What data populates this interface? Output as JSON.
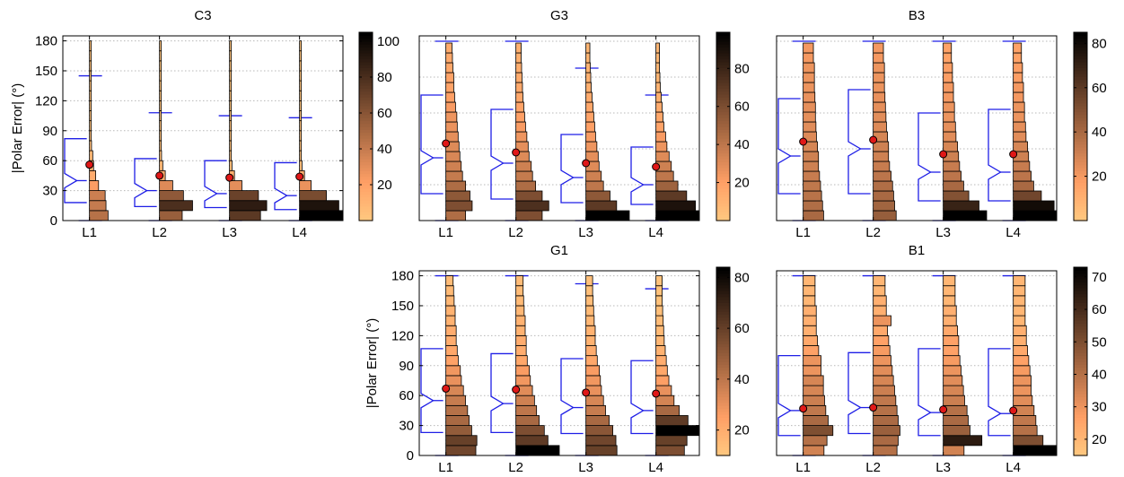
{
  "figure": {
    "ylabel": "|Polar Error| (°)"
  },
  "chart_data": [
    {
      "type": "histogram-boxplot",
      "title": "C3",
      "categories": [
        "L1",
        "L2",
        "L3",
        "L4"
      ],
      "ylabel": "|Polar Error| (°)",
      "ylim": [
        0,
        185
      ],
      "yticks": [
        0,
        30,
        60,
        90,
        120,
        150,
        180
      ],
      "bin_width_deg": 10,
      "colorbar": {
        "min": 0,
        "max": 105,
        "ticks": [
          20,
          40,
          60,
          80,
          100
        ],
        "colormap": "copper-reversed"
      },
      "series": [
        {
          "name": "L1",
          "counts": [
            45,
            40,
            38,
            22,
            15,
            10,
            8,
            5,
            4,
            3,
            3,
            2,
            2,
            2,
            2,
            2,
            2,
            2
          ],
          "mean": 56,
          "box": {
            "whisker_low": 0,
            "q1": 18,
            "median": 40,
            "q3": 82,
            "whisker_high": 145
          }
        },
        {
          "name": "L2",
          "counts": [
            55,
            80,
            58,
            32,
            14,
            8,
            5,
            4,
            3,
            2,
            2,
            2,
            1,
            1,
            1,
            1,
            1,
            1
          ],
          "mean": 45,
          "box": {
            "whisker_low": 0,
            "q1": 14,
            "median": 30,
            "q3": 62,
            "whisker_high": 108
          }
        },
        {
          "name": "L3",
          "counts": [
            75,
            90,
            70,
            30,
            12,
            6,
            4,
            3,
            2,
            2,
            2,
            1,
            1,
            1,
            1,
            1,
            1,
            1
          ],
          "mean": 43,
          "box": {
            "whisker_low": 0,
            "q1": 13,
            "median": 27,
            "q3": 60,
            "whisker_high": 105
          }
        },
        {
          "name": "L4",
          "counts": [
            105,
            95,
            65,
            28,
            12,
            6,
            4,
            3,
            2,
            2,
            1,
            1,
            1,
            1,
            1,
            1,
            1,
            1
          ],
          "mean": 44,
          "box": {
            "whisker_low": 0,
            "q1": 11,
            "median": 25,
            "q3": 58,
            "whisker_high": 103
          }
        }
      ]
    },
    {
      "type": "histogram-boxplot",
      "title": "G3",
      "categories": [
        "L1",
        "L2",
        "L3",
        "L4"
      ],
      "ylim": [
        0,
        103
      ],
      "yticks": [],
      "bin_width_deg": 5.5,
      "colorbar": {
        "min": 0,
        "max": 99,
        "ticks": [
          20,
          40,
          60,
          80
        ],
        "colormap": "copper-reversed"
      },
      "series": [
        {
          "name": "L1",
          "counts": [
            45,
            60,
            55,
            45,
            38,
            35,
            32,
            30,
            28,
            26,
            25,
            22,
            20,
            18,
            18,
            16,
            15,
            14
          ],
          "mean": 43,
          "box": {
            "whisker_low": 0,
            "q1": 15,
            "median": 35,
            "q3": 70,
            "whisker_high": 100
          }
        },
        {
          "name": "L2",
          "counts": [
            60,
            75,
            60,
            45,
            38,
            35,
            30,
            28,
            25,
            22,
            20,
            18,
            16,
            15,
            14,
            13,
            12,
            12
          ],
          "mean": 38,
          "box": {
            "whisker_low": 0,
            "q1": 12,
            "median": 32,
            "q3": 62,
            "whisker_high": 100
          }
        },
        {
          "name": "L3",
          "counts": [
            99,
            70,
            55,
            40,
            35,
            30,
            28,
            25,
            22,
            20,
            18,
            16,
            14,
            12,
            11,
            10,
            9,
            9
          ],
          "mean": 32,
          "box": {
            "whisker_low": 0,
            "q1": 10,
            "median": 24,
            "q3": 48,
            "whisker_high": 85
          }
        },
        {
          "name": "L4",
          "counts": [
            99,
            90,
            70,
            50,
            40,
            35,
            30,
            25,
            22,
            18,
            16,
            14,
            12,
            10,
            9,
            8,
            8,
            8
          ],
          "mean": 30,
          "box": {
            "whisker_low": 0,
            "q1": 9,
            "median": 20,
            "q3": 41,
            "whisker_high": 70
          }
        }
      ]
    },
    {
      "type": "histogram-boxplot",
      "title": "B3",
      "categories": [
        "L1",
        "L2",
        "L3",
        "L4"
      ],
      "ylim": [
        0,
        103
      ],
      "yticks": [],
      "bin_width_deg": 5.5,
      "colorbar": {
        "min": 0,
        "max": 85,
        "ticks": [
          20,
          40,
          60,
          80
        ],
        "colormap": "copper-reversed"
      },
      "series": [
        {
          "name": "L1",
          "counts": [
            40,
            38,
            36,
            34,
            32,
            30,
            30,
            28,
            26,
            25,
            24,
            24,
            23,
            22,
            22,
            22,
            20,
            20
          ],
          "mean": 44,
          "box": {
            "whisker_low": 0,
            "q1": 15,
            "median": 36,
            "q3": 68,
            "whisker_high": 100
          }
        },
        {
          "name": "L2",
          "counts": [
            45,
            42,
            40,
            38,
            35,
            32,
            30,
            30,
            28,
            26,
            25,
            24,
            23,
            22,
            22,
            22,
            20,
            20
          ],
          "mean": 45,
          "box": {
            "whisker_low": 0,
            "q1": 15,
            "median": 40,
            "q3": 73,
            "whisker_high": 100
          }
        },
        {
          "name": "L3",
          "counts": [
            85,
            70,
            50,
            40,
            35,
            32,
            30,
            28,
            25,
            24,
            22,
            22,
            20,
            20,
            18,
            18,
            16,
            16
          ],
          "mean": 37,
          "box": {
            "whisker_low": 0,
            "q1": 11,
            "median": 27,
            "q3": 60,
            "whisker_high": 100
          }
        },
        {
          "name": "L4",
          "counts": [
            85,
            80,
            55,
            40,
            35,
            32,
            30,
            28,
            25,
            24,
            22,
            22,
            20,
            20,
            18,
            18,
            16,
            16
          ],
          "mean": 37,
          "box": {
            "whisker_low": 0,
            "q1": 11,
            "median": 27,
            "q3": 62,
            "whisker_high": 100
          }
        }
      ]
    },
    {
      "type": "histogram-boxplot",
      "title": "G1",
      "categories": [
        "L1",
        "L2",
        "L3",
        "L4"
      ],
      "ylabel": "|Polar Error| (°)",
      "ylim": [
        0,
        185
      ],
      "yticks": [
        0,
        30,
        60,
        90,
        120,
        150,
        180
      ],
      "bin_width_deg": 10,
      "colorbar": {
        "min": 10,
        "max": 84,
        "ticks": [
          20,
          40,
          60,
          80
        ],
        "colormap": "copper-reversed"
      },
      "series": [
        {
          "name": "L1",
          "counts": [
            58,
            60,
            50,
            45,
            42,
            38,
            34,
            30,
            28,
            24,
            22,
            20,
            20,
            18,
            18,
            16,
            15,
            14
          ],
          "mean": 67,
          "box": {
            "whisker_low": 0,
            "q1": 23,
            "median": 55,
            "q3": 107,
            "whisker_high": 180
          }
        },
        {
          "name": "L2",
          "counts": [
            84,
            62,
            55,
            45,
            40,
            36,
            32,
            28,
            26,
            22,
            20,
            20,
            18,
            18,
            16,
            15,
            14,
            14
          ],
          "mean": 66,
          "box": {
            "whisker_low": 0,
            "q1": 23,
            "median": 52,
            "q3": 102,
            "whisker_high": 180
          }
        },
        {
          "name": "L3",
          "counts": [
            60,
            58,
            52,
            45,
            38,
            34,
            30,
            28,
            26,
            22,
            20,
            18,
            18,
            16,
            15,
            14,
            13,
            13
          ],
          "mean": 63,
          "box": {
            "whisker_low": 0,
            "q1": 22,
            "median": 48,
            "q3": 97,
            "whisker_high": 172
          }
        },
        {
          "name": "L4",
          "counts": [
            55,
            60,
            84,
            62,
            45,
            35,
            30,
            25,
            22,
            20,
            18,
            16,
            15,
            14,
            13,
            12,
            12,
            12
          ],
          "mean": 62,
          "box": {
            "whisker_low": 0,
            "q1": 22,
            "median": 45,
            "q3": 95,
            "whisker_high": 167
          }
        }
      ]
    },
    {
      "type": "histogram-boxplot",
      "title": "B1",
      "categories": [
        "L1",
        "L2",
        "L3",
        "L4"
      ],
      "ylim": [
        0,
        185
      ],
      "yticks": [],
      "bin_width_deg": 10,
      "colorbar": {
        "min": 15,
        "max": 73,
        "ticks": [
          20,
          30,
          40,
          50,
          60,
          70
        ],
        "colormap": "copper-reversed"
      },
      "series": [
        {
          "name": "L1",
          "counts": [
            35,
            40,
            50,
            42,
            38,
            36,
            34,
            34,
            30,
            30,
            26,
            24,
            22,
            22,
            22,
            20,
            20,
            20
          ],
          "mean": 47,
          "box": {
            "whisker_low": 0,
            "q1": 20,
            "median": 45,
            "q3": 100,
            "whisker_high": 180
          }
        },
        {
          "name": "L2",
          "counts": [
            40,
            42,
            45,
            42,
            40,
            38,
            36,
            34,
            32,
            30,
            28,
            26,
            24,
            30,
            22,
            22,
            20,
            20
          ],
          "mean": 48,
          "box": {
            "whisker_low": 0,
            "q1": 22,
            "median": 48,
            "q3": 103,
            "whisker_high": 180
          }
        },
        {
          "name": "L3",
          "counts": [
            35,
            65,
            45,
            42,
            40,
            36,
            34,
            32,
            30,
            28,
            26,
            26,
            24,
            22,
            22,
            20,
            20,
            20
          ],
          "mean": 46,
          "box": {
            "whisker_low": 0,
            "q1": 20,
            "median": 43,
            "q3": 107,
            "whisker_high": 180
          }
        },
        {
          "name": "L4",
          "counts": [
            73,
            50,
            40,
            38,
            35,
            32,
            30,
            30,
            28,
            26,
            24,
            22,
            22,
            20,
            20,
            20,
            20,
            20
          ],
          "mean": 45,
          "box": {
            "whisker_low": 0,
            "q1": 20,
            "median": 42,
            "q3": 107,
            "whisker_high": 180
          }
        }
      ]
    }
  ]
}
